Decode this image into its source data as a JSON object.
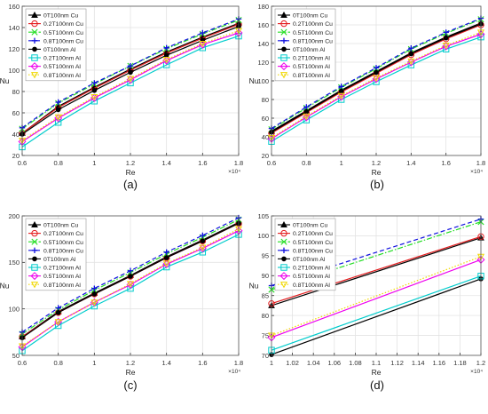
{
  "chart_data": [
    {
      "type": "line",
      "panel_label": "(a)",
      "xlabel": "Re",
      "ylabel": "Nu",
      "x_multiplier": "×10⁴",
      "xlim": [
        0.6,
        1.8
      ],
      "ylim": [
        20,
        160
      ],
      "xticks": [
        "0.6",
        "0.8",
        "1",
        "1.2",
        "1.4",
        "1.6",
        "1.8"
      ],
      "yticks": [
        "20",
        "40",
        "60",
        "80",
        "100",
        "120",
        "140",
        "160"
      ],
      "grid": true,
      "legend_position": "top-left",
      "x": [
        0.6,
        0.8,
        1.0,
        1.2,
        1.4,
        1.6,
        1.8
      ],
      "series": [
        {
          "name": "0T100nm Cu",
          "values": [
            41,
            66,
            84,
            101,
            117,
            131,
            144
          ]
        },
        {
          "name": "0.2T100nm Cu",
          "values": [
            41,
            65,
            83,
            100,
            116,
            130,
            143
          ]
        },
        {
          "name": "0.5T100nm Cu",
          "values": [
            45,
            69,
            87,
            104,
            120,
            134,
            147
          ]
        },
        {
          "name": "0.8T100nm Cu",
          "values": [
            46,
            70,
            88,
            104,
            121,
            135,
            148
          ]
        },
        {
          "name": "0T100nm Al",
          "values": [
            40,
            63,
            81,
            98,
            114,
            128,
            141
          ]
        },
        {
          "name": "0.2T100nm Al",
          "values": [
            28,
            51,
            71,
            88,
            105,
            121,
            132
          ]
        },
        {
          "name": "0.5T100nm Al",
          "values": [
            33,
            55,
            74,
            91,
            109,
            124,
            135
          ]
        },
        {
          "name": "0.8T100nm Al",
          "values": [
            34,
            56,
            75,
            92,
            110,
            125,
            137
          ]
        }
      ]
    },
    {
      "type": "line",
      "panel_label": "(b)",
      "xlabel": "Re",
      "ylabel": "Nu",
      "x_multiplier": "×10⁴",
      "xlim": [
        0.6,
        1.8
      ],
      "ylim": [
        20,
        180
      ],
      "xticks": [
        "0.6",
        "0.8",
        "1",
        "1.2",
        "1.4",
        "1.6",
        "1.8"
      ],
      "yticks": [
        "20",
        "40",
        "60",
        "80",
        "100",
        "120",
        "140",
        "160",
        "180"
      ],
      "grid": true,
      "legend_position": "top-left",
      "x": [
        0.6,
        0.8,
        1.0,
        1.2,
        1.4,
        1.6,
        1.8
      ],
      "series": [
        {
          "name": "0T100nm Cu",
          "values": [
            46,
            68,
            90,
            110,
            130,
            147,
            162
          ]
        },
        {
          "name": "0.2T100nm Cu",
          "values": [
            44,
            66,
            88,
            108,
            128,
            145,
            160
          ]
        },
        {
          "name": "0.5T100nm Cu",
          "values": [
            48,
            71,
            93,
            113,
            134,
            151,
            166
          ]
        },
        {
          "name": "0.8T100nm Cu",
          "values": [
            49,
            72,
            94,
            114,
            135,
            152,
            167
          ]
        },
        {
          "name": "0T100nm Al",
          "values": [
            45,
            67,
            89,
            109,
            129,
            146,
            161
          ]
        },
        {
          "name": "0.2T100nm Al",
          "values": [
            35,
            58,
            80,
            99,
            117,
            134,
            147
          ]
        },
        {
          "name": "0.5T100nm Al",
          "values": [
            38,
            61,
            83,
            102,
            120,
            137,
            150
          ]
        },
        {
          "name": "0.8T100nm Al",
          "values": [
            39,
            62,
            84,
            103,
            121,
            138,
            152
          ]
        }
      ]
    },
    {
      "type": "line",
      "panel_label": "(c)",
      "xlabel": "Re",
      "ylabel": "Nu",
      "x_multiplier": "×10⁴",
      "xlim": [
        0.6,
        1.8
      ],
      "ylim": [
        50,
        200
      ],
      "xticks": [
        "0.6",
        "0.8",
        "1",
        "1.2",
        "1.4",
        "1.6",
        "1.8"
      ],
      "yticks": [
        "50",
        "100",
        "150",
        "200"
      ],
      "grid": true,
      "legend_position": "top-left",
      "x": [
        0.6,
        0.8,
        1.0,
        1.2,
        1.4,
        1.6,
        1.8
      ],
      "series": [
        {
          "name": "0T100nm Cu",
          "values": [
            70,
            97,
            117,
            136,
            156,
            174,
            193
          ]
        },
        {
          "name": "0.2T100nm Cu",
          "values": [
            70,
            96,
            116,
            135,
            155,
            173,
            192
          ]
        },
        {
          "name": "0.5T100nm Cu",
          "values": [
            73,
            99,
            120,
            139,
            159,
            177,
            196
          ]
        },
        {
          "name": "0.8T100nm Cu",
          "values": [
            75,
            101,
            122,
            141,
            161,
            179,
            198
          ]
        },
        {
          "name": "0T100nm Al",
          "values": [
            69,
            96,
            116,
            135,
            155,
            173,
            192
          ]
        },
        {
          "name": "0.2T100nm Al",
          "values": [
            55,
            82,
            103,
            122,
            145,
            161,
            180
          ]
        },
        {
          "name": "0.5T100nm Al",
          "values": [
            59,
            86,
            107,
            126,
            148,
            165,
            184
          ]
        },
        {
          "name": "0.8T100nm Al",
          "values": [
            60,
            86,
            107,
            127,
            149,
            166,
            186
          ]
        }
      ]
    },
    {
      "type": "line",
      "panel_label": "(d)",
      "xlabel": "Re",
      "ylabel": "Nu",
      "x_multiplier": "×10⁴",
      "xlim": [
        1.0,
        1.2
      ],
      "ylim": [
        70,
        105
      ],
      "xticks": [
        "1",
        "1.02",
        "1.04",
        "1.06",
        "1.08",
        "1.1",
        "1.12",
        "1.14",
        "1.16",
        "1.18",
        "1.2"
      ],
      "yticks": [
        "70",
        "75",
        "80",
        "85",
        "90",
        "95",
        "100",
        "105"
      ],
      "grid": true,
      "legend_position": "top-left",
      "x": [
        1.0,
        1.2
      ],
      "series": [
        {
          "name": "0T100nm Cu",
          "values": [
            82.5,
            99.5
          ]
        },
        {
          "name": "0.2T100nm Cu",
          "values": [
            83.0,
            99.8
          ]
        },
        {
          "name": "0.5T100nm Cu",
          "values": [
            86.5,
            103.5
          ]
        },
        {
          "name": "0.8T100nm Cu",
          "values": [
            87.5,
            104.2
          ]
        },
        {
          "name": "0T100nm Al",
          "values": [
            70.2,
            89.2
          ]
        },
        {
          "name": "0.2T100nm Al",
          "values": [
            71.3,
            89.9
          ]
        },
        {
          "name": "0.5T100nm Al",
          "values": [
            74.5,
            94.0
          ]
        },
        {
          "name": "0.8T100nm Al",
          "values": [
            75.0,
            94.8
          ]
        }
      ]
    }
  ],
  "style": {
    "series_colors": [
      "#000000",
      "#e41a1c",
      "#22dd22",
      "#1010e0",
      "#000000",
      "#00cccc",
      "#ee00ee",
      "#f0d800"
    ],
    "series_markers": [
      "triangle",
      "circle",
      "x",
      "plus",
      "dot",
      "square",
      "diamond",
      "triangle-down"
    ],
    "series_dashes": [
      "solid",
      "solid",
      "dashdot",
      "dashed",
      "solid",
      "solid",
      "solid",
      "dotted"
    ]
  }
}
